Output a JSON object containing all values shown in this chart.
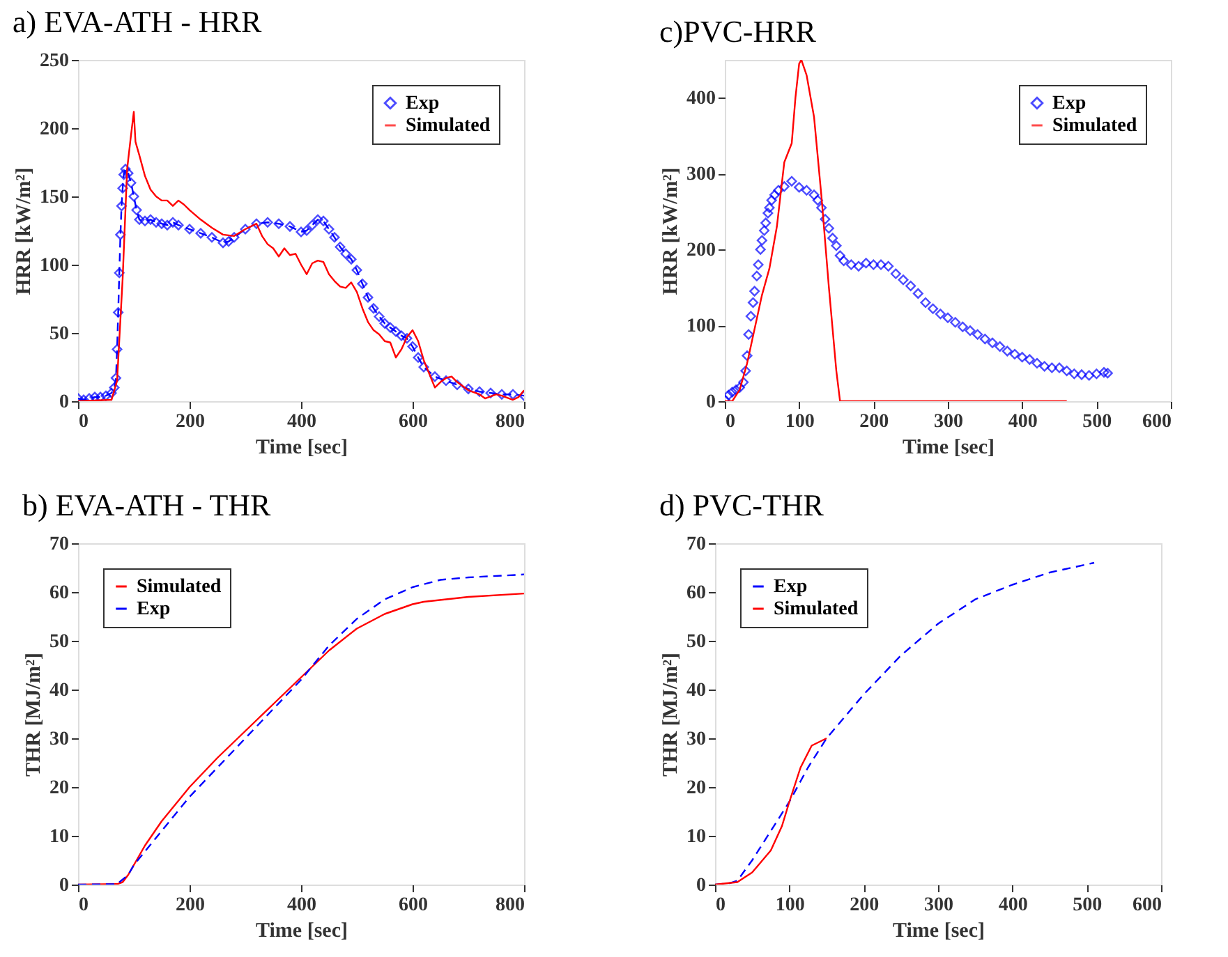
{
  "chart_data": [
    {
      "type": "line",
      "title": "a)   EVA-ATH - HRR",
      "xlabel": "Time [sec]",
      "ylabel": "HRR [kW/m²]",
      "xlim": [
        0,
        800
      ],
      "xticks": [
        0,
        200,
        400,
        600,
        800
      ],
      "ylim": [
        0,
        250
      ],
      "yticks": [
        0,
        50,
        100,
        150,
        200,
        250
      ],
      "grid": false,
      "legend": "top right",
      "series": [
        {
          "name": "Exp",
          "color": "#0000ff",
          "marker": "diamond",
          "line_style": "dashed",
          "x": [
            0,
            10,
            20,
            30,
            40,
            50,
            60,
            65,
            68,
            70,
            72,
            74,
            76,
            78,
            80,
            82,
            85,
            90,
            95,
            100,
            105,
            110,
            120,
            130,
            140,
            150,
            160,
            170,
            180,
            200,
            220,
            240,
            260,
            270,
            280,
            300,
            320,
            340,
            360,
            380,
            400,
            410,
            420,
            430,
            440,
            450,
            460,
            470,
            480,
            490,
            500,
            510,
            520,
            530,
            540,
            550,
            560,
            570,
            580,
            590,
            600,
            610,
            620,
            640,
            660,
            680,
            700,
            720,
            740,
            760,
            780,
            800
          ],
          "values": [
            2,
            1,
            2,
            3,
            3,
            4,
            6,
            10,
            17,
            38,
            65,
            94,
            122,
            143,
            156,
            166,
            170,
            167,
            160,
            150,
            140,
            133,
            132,
            133,
            131,
            130,
            129,
            131,
            129,
            126,
            123,
            120,
            116,
            117,
            120,
            126,
            130,
            131,
            130,
            128,
            124,
            125,
            129,
            133,
            132,
            126,
            120,
            113,
            108,
            104,
            96,
            86,
            76,
            68,
            62,
            57,
            54,
            51,
            48,
            46,
            40,
            32,
            25,
            18,
            15,
            12,
            9,
            7,
            6,
            5,
            5,
            4
          ]
        },
        {
          "name": "Simulated",
          "color": "#ff0000",
          "marker": "none",
          "line_style": "solid",
          "x": [
            0,
            60,
            70,
            80,
            88,
            95,
            100,
            103,
            110,
            120,
            130,
            140,
            150,
            160,
            170,
            180,
            190,
            200,
            220,
            240,
            260,
            280,
            300,
            320,
            330,
            340,
            350,
            360,
            370,
            380,
            390,
            400,
            410,
            420,
            430,
            440,
            450,
            460,
            470,
            480,
            490,
            500,
            510,
            520,
            530,
            540,
            550,
            560,
            570,
            580,
            590,
            600,
            610,
            620,
            630,
            640,
            650,
            660,
            670,
            680,
            700,
            720,
            730,
            750,
            760,
            780,
            790,
            800
          ],
          "values": [
            0,
            1,
            15,
            90,
            170,
            195,
            212,
            190,
            180,
            165,
            155,
            150,
            147,
            147,
            143,
            147,
            144,
            140,
            133,
            127,
            122,
            121,
            126,
            130,
            121,
            115,
            112,
            106,
            112,
            107,
            108,
            100,
            93,
            101,
            103,
            102,
            93,
            88,
            84,
            83,
            87,
            80,
            68,
            58,
            52,
            49,
            44,
            43,
            32,
            38,
            47,
            52,
            44,
            30,
            20,
            10,
            14,
            17,
            18,
            14,
            8,
            5,
            2,
            5,
            4,
            1,
            3,
            8
          ]
        }
      ]
    },
    {
      "type": "line",
      "title": "c)PVC-HRR",
      "xlabel": "Time [sec]",
      "ylabel": "HRR [kW/m²]",
      "xlim": [
        0,
        600
      ],
      "xticks": [
        0,
        100,
        200,
        300,
        400,
        500,
        600
      ],
      "ylim": [
        0,
        450
      ],
      "yticks": [
        0,
        100,
        200,
        300,
        400
      ],
      "grid": false,
      "legend": "top right",
      "series": [
        {
          "name": "Exp",
          "type": "scatter",
          "color": "#0000ff",
          "marker": "diamond",
          "x": [
            0,
            5,
            10,
            15,
            20,
            25,
            28,
            30,
            32,
            35,
            38,
            40,
            43,
            45,
            48,
            50,
            53,
            55,
            58,
            60,
            63,
            67,
            72,
            80,
            90,
            100,
            110,
            120,
            125,
            130,
            135,
            140,
            145,
            150,
            155,
            160,
            170,
            180,
            190,
            200,
            210,
            220,
            230,
            240,
            250,
            260,
            270,
            280,
            290,
            300,
            310,
            320,
            330,
            340,
            350,
            360,
            370,
            380,
            390,
            400,
            410,
            420,
            430,
            440,
            450,
            460,
            470,
            480,
            490,
            500,
            510,
            515
          ],
          "values": [
            2,
            8,
            12,
            15,
            18,
            25,
            40,
            60,
            88,
            112,
            130,
            145,
            165,
            180,
            200,
            212,
            225,
            235,
            248,
            255,
            265,
            272,
            278,
            283,
            290,
            282,
            278,
            272,
            265,
            255,
            240,
            228,
            215,
            205,
            192,
            185,
            180,
            178,
            182,
            180,
            180,
            178,
            168,
            160,
            152,
            142,
            130,
            122,
            115,
            110,
            104,
            98,
            93,
            88,
            82,
            77,
            72,
            66,
            62,
            58,
            55,
            50,
            46,
            44,
            44,
            40,
            36,
            35,
            34,
            36,
            38,
            37
          ]
        },
        {
          "name": "Simulated",
          "color": "#ff0000",
          "marker": "none",
          "line_style": "solid",
          "x": [
            0,
            10,
            20,
            30,
            40,
            50,
            60,
            70,
            80,
            90,
            95,
            100,
            103,
            110,
            120,
            130,
            140,
            150,
            155,
            175,
            460
          ],
          "values": [
            0,
            0,
            15,
            50,
            95,
            140,
            175,
            230,
            315,
            340,
            400,
            445,
            450,
            430,
            375,
            270,
            150,
            40,
            0,
            0,
            0
          ]
        }
      ]
    },
    {
      "type": "line",
      "title": "b)   EVA-ATH - THR",
      "xlabel": "Time [sec]",
      "ylabel": "THR [MJ/m²]",
      "xlim": [
        0,
        800
      ],
      "xticks": [
        0,
        200,
        400,
        600,
        800
      ],
      "ylim": [
        0,
        70
      ],
      "yticks": [
        0,
        10,
        20,
        30,
        40,
        50,
        60,
        70
      ],
      "grid": false,
      "legend": "top left",
      "series": [
        {
          "name": "Simulated",
          "color": "#ff0000",
          "marker": "none",
          "line_style": "solid",
          "x": [
            0,
            70,
            80,
            90,
            100,
            120,
            150,
            200,
            250,
            300,
            350,
            400,
            450,
            500,
            550,
            600,
            620,
            700,
            800
          ],
          "values": [
            0,
            0.1,
            0.5,
            2,
            4,
            8,
            13,
            20,
            26,
            31.5,
            37,
            42.5,
            48,
            52.5,
            55.5,
            57.5,
            58,
            59,
            59.7
          ]
        },
        {
          "name": "Exp",
          "color": "#0000ff",
          "marker": "none",
          "line_style": "dashed",
          "x": [
            0,
            70,
            90,
            100,
            150,
            200,
            250,
            300,
            350,
            400,
            450,
            500,
            550,
            600,
            650,
            700,
            800
          ],
          "values": [
            0,
            0.1,
            2,
            4,
            11,
            18,
            24,
            30,
            36,
            42,
            49,
            54.5,
            58.5,
            61,
            62.5,
            63,
            63.6
          ]
        }
      ]
    },
    {
      "type": "line",
      "title": "d) PVC-THR",
      "xlabel": "Time [sec]",
      "ylabel": "THR [MJ/m²]",
      "xlim": [
        0,
        600
      ],
      "xticks": [
        0,
        100,
        200,
        300,
        400,
        500,
        600
      ],
      "ylim": [
        0,
        70
      ],
      "yticks": [
        0,
        10,
        20,
        30,
        40,
        50,
        60,
        70
      ],
      "grid": false,
      "legend": "top left",
      "series": [
        {
          "name": "Exp",
          "color": "#0000ff",
          "marker": "none",
          "line_style": "dashed",
          "x": [
            0,
            20,
            30,
            50,
            75,
            100,
            125,
            150,
            200,
            250,
            300,
            350,
            400,
            450,
            510
          ],
          "values": [
            0,
            0.3,
            0.8,
            5,
            11,
            17,
            24,
            30,
            39,
            47,
            53.5,
            58.5,
            61.5,
            64,
            66
          ]
        },
        {
          "name": "Simulated",
          "color": "#ff0000",
          "marker": "none",
          "line_style": "solid",
          "x": [
            0,
            30,
            50,
            75,
            90,
            100,
            115,
            130,
            150
          ],
          "values": [
            0,
            0.5,
            2.5,
            7,
            12,
            17,
            24,
            28.5,
            30
          ]
        }
      ]
    }
  ]
}
